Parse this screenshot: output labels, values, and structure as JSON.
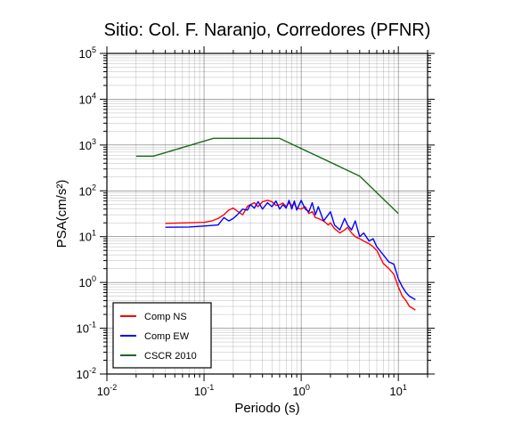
{
  "chart_data": {
    "type": "line",
    "title": "Sitio: Col. F. Naranjo, Corredores (PFNR)",
    "xlabel": "Periodo (s)",
    "ylabel": "PSA(cm/s²)",
    "x_scale": "log",
    "y_scale": "log",
    "xlim": [
      0.01,
      20
    ],
    "ylim": [
      0.01,
      100000
    ],
    "grid": true,
    "legend_position": "bottom-left",
    "x_ticks": [
      {
        "value": 0.01,
        "base": "10",
        "exp": "-2"
      },
      {
        "value": 0.1,
        "base": "10",
        "exp": "-1"
      },
      {
        "value": 1,
        "base": "10",
        "exp": "0"
      },
      {
        "value": 10,
        "base": "10",
        "exp": "1"
      }
    ],
    "y_ticks": [
      {
        "value": 0.01,
        "base": "10",
        "exp": "-2"
      },
      {
        "value": 0.1,
        "base": "10",
        "exp": "-1"
      },
      {
        "value": 1,
        "base": "10",
        "exp": "0"
      },
      {
        "value": 10,
        "base": "10",
        "exp": "1"
      },
      {
        "value": 100,
        "base": "10",
        "exp": "2"
      },
      {
        "value": 1000,
        "base": "10",
        "exp": "3"
      },
      {
        "value": 10000,
        "base": "10",
        "exp": "4"
      },
      {
        "value": 100000,
        "base": "10",
        "exp": "5"
      }
    ],
    "series": [
      {
        "name": "Comp NS",
        "color": "#ff0000",
        "x": [
          0.04,
          0.07,
          0.1,
          0.12,
          0.14,
          0.16,
          0.18,
          0.2,
          0.22,
          0.25,
          0.28,
          0.3,
          0.33,
          0.36,
          0.4,
          0.45,
          0.5,
          0.55,
          0.6,
          0.65,
          0.7,
          0.75,
          0.8,
          0.85,
          0.9,
          1.0,
          1.1,
          1.2,
          1.3,
          1.4,
          1.5,
          1.7,
          1.9,
          2.0,
          2.2,
          2.5,
          2.8,
          3.0,
          3.3,
          3.6,
          4.0,
          4.4,
          5.0,
          5.5,
          6.0,
          7.0,
          8.0,
          9.0,
          10.0,
          11.0,
          12.0,
          13.0,
          15.0
        ],
        "y": [
          19.5,
          20,
          20.5,
          22,
          25,
          30,
          38,
          42,
          36,
          30,
          46,
          50,
          55,
          45,
          58,
          62,
          58,
          48,
          50,
          54,
          45,
          55,
          48,
          52,
          42,
          40,
          45,
          32,
          35,
          26,
          25,
          22,
          18,
          20,
          15,
          12,
          14,
          16,
          12,
          10,
          9,
          8,
          7,
          6,
          5,
          2.6,
          2.0,
          1.5,
          0.8,
          0.5,
          0.4,
          0.3,
          0.25
        ]
      },
      {
        "name": "Comp EW",
        "color": "#0000ff",
        "x": [
          0.04,
          0.07,
          0.1,
          0.12,
          0.14,
          0.16,
          0.18,
          0.2,
          0.22,
          0.25,
          0.28,
          0.3,
          0.33,
          0.36,
          0.4,
          0.45,
          0.5,
          0.55,
          0.6,
          0.65,
          0.7,
          0.75,
          0.8,
          0.85,
          0.9,
          1.0,
          1.1,
          1.2,
          1.3,
          1.4,
          1.5,
          1.7,
          1.9,
          2.0,
          2.2,
          2.5,
          2.8,
          3.0,
          3.3,
          3.6,
          4.0,
          4.4,
          5.0,
          5.5,
          6.0,
          7.0,
          8.0,
          9.0,
          10.0,
          11.0,
          12.0,
          13.0,
          15.0
        ],
        "y": [
          16,
          16.2,
          17,
          17.5,
          18,
          26,
          22,
          25,
          30,
          40,
          38,
          50,
          42,
          58,
          40,
          55,
          45,
          60,
          40,
          50,
          42,
          62,
          40,
          60,
          38,
          62,
          40,
          35,
          55,
          30,
          45,
          22,
          30,
          35,
          18,
          14,
          25,
          18,
          14,
          22,
          10,
          12,
          8,
          9,
          6,
          4.0,
          2.8,
          2.5,
          1.2,
          0.8,
          0.6,
          0.5,
          0.42
        ]
      },
      {
        "name": "CSCR 2010",
        "color": "#1a6b1a",
        "x": [
          0.02,
          0.03,
          0.125,
          0.6,
          4.0,
          10.0
        ],
        "y": [
          570,
          570,
          1400,
          1400,
          210,
          32
        ]
      }
    ]
  }
}
